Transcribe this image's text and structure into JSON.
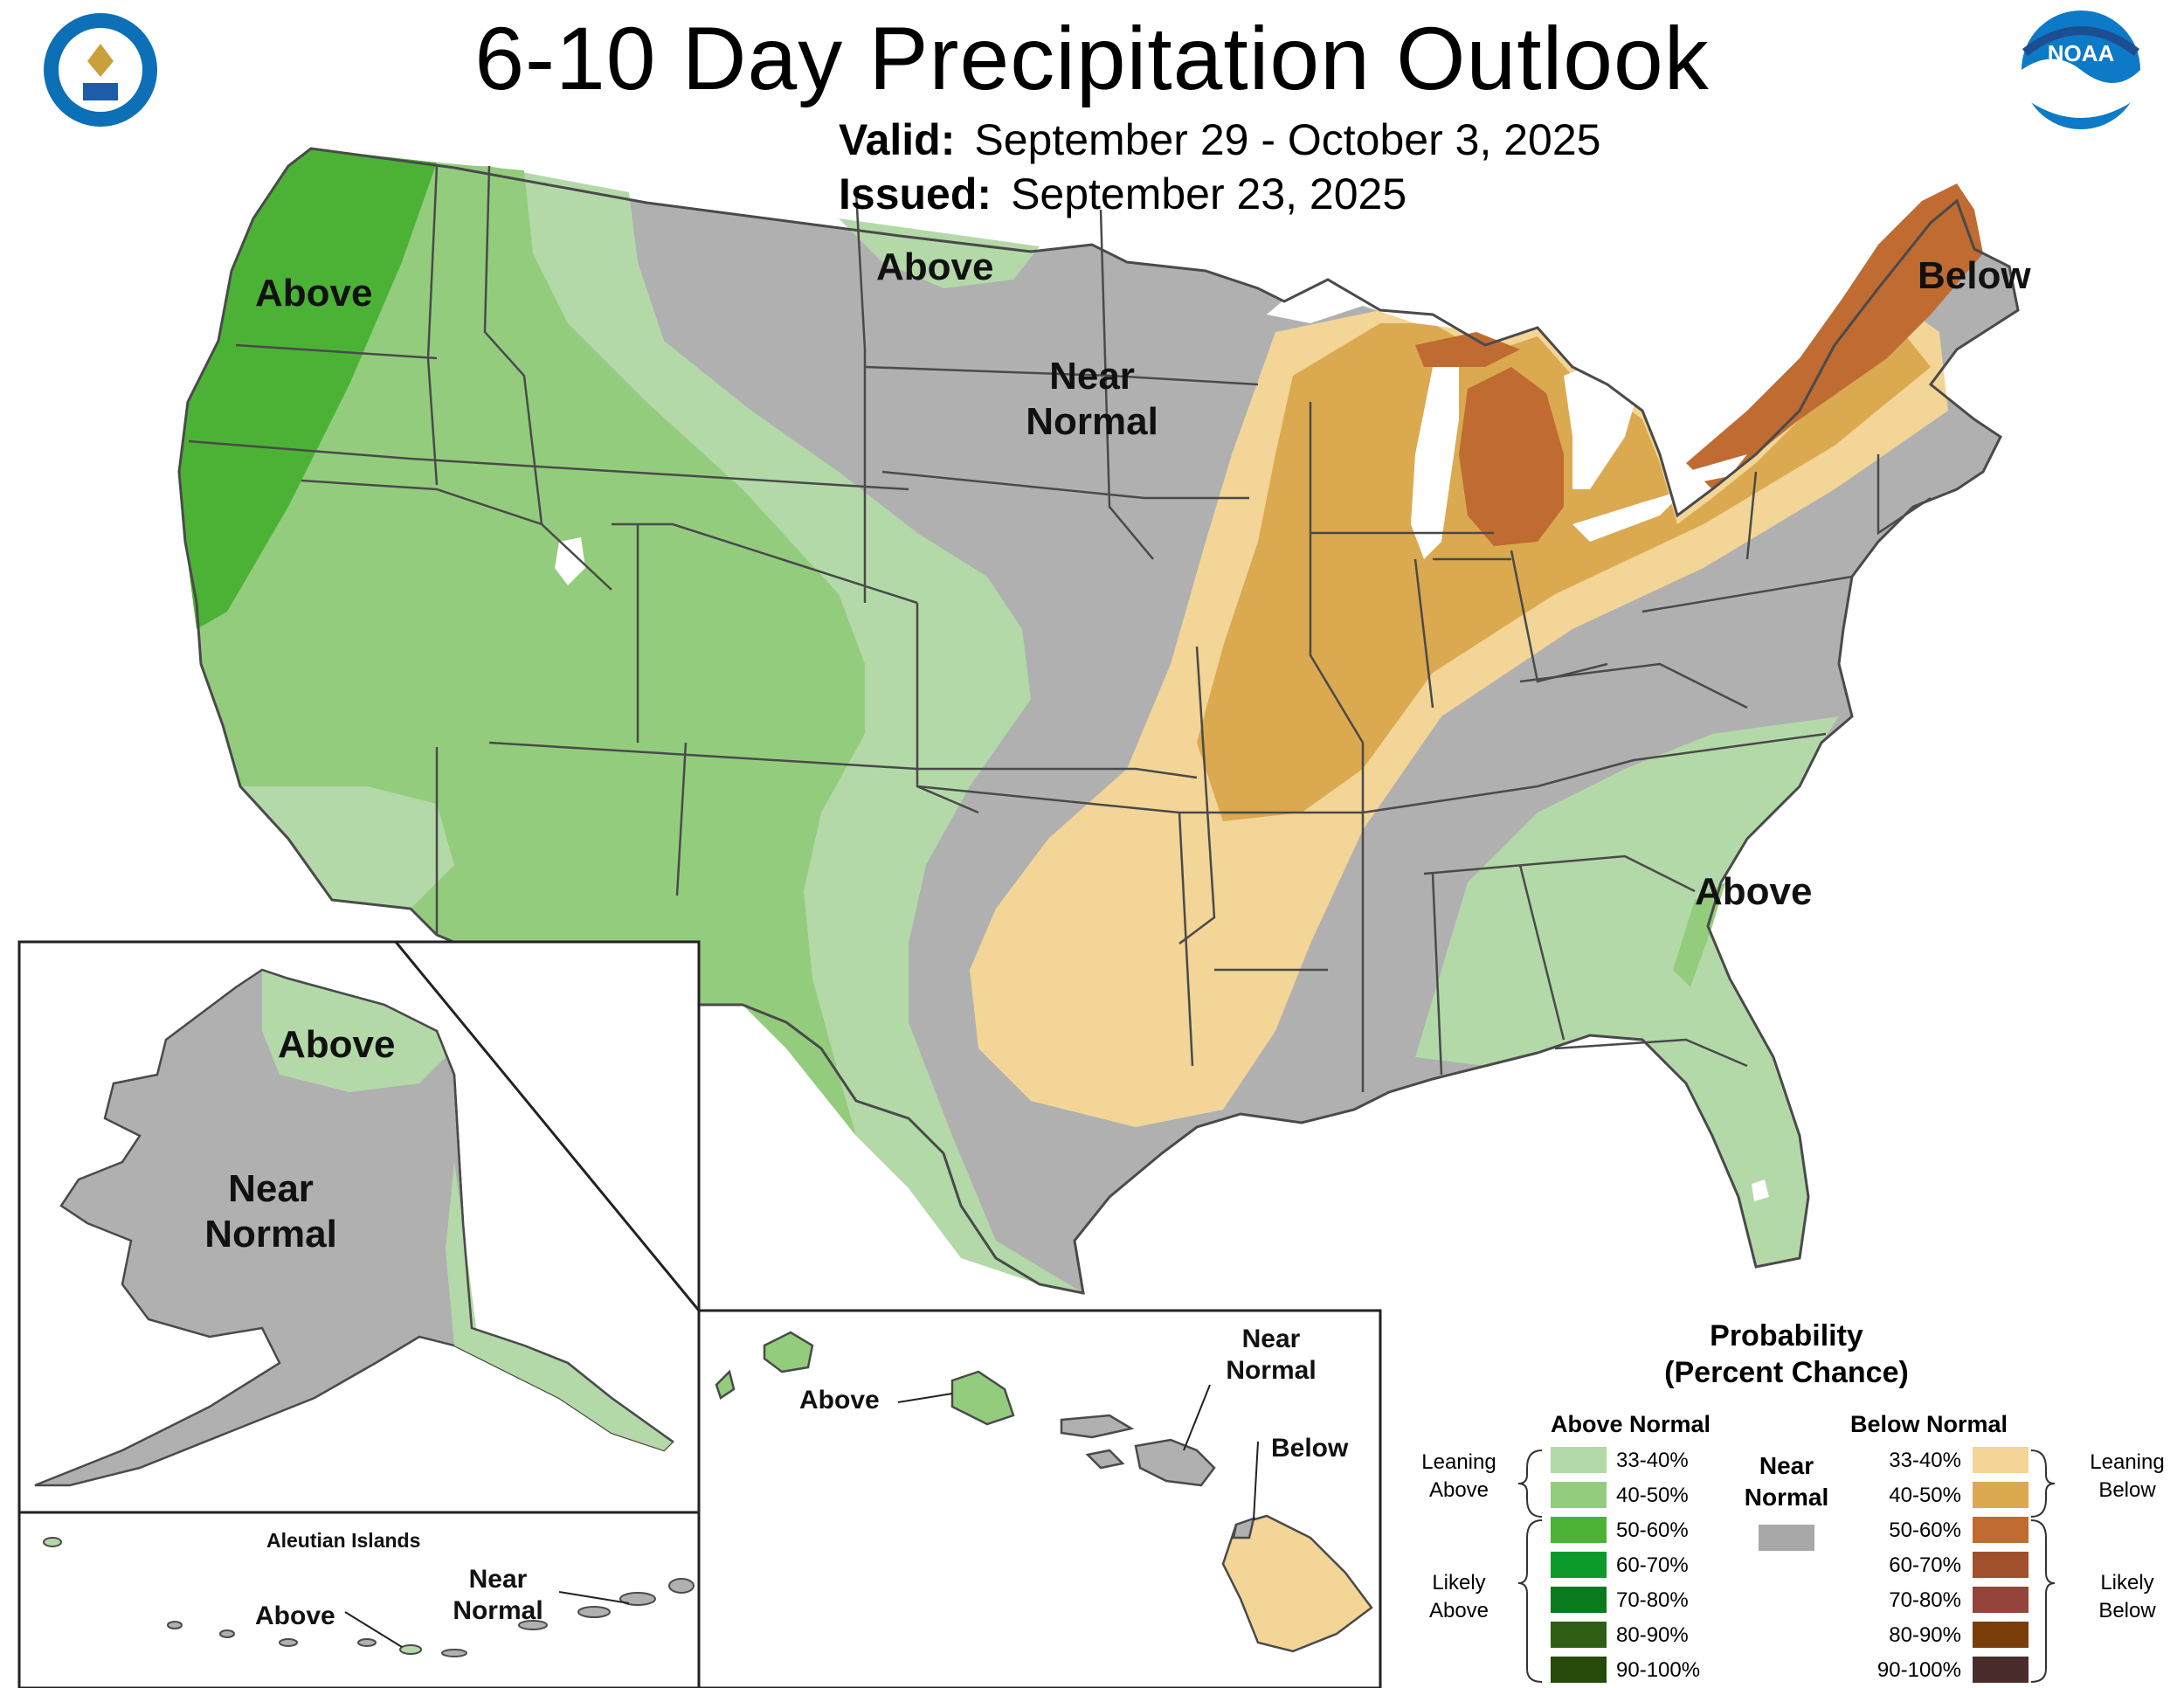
{
  "title": "6-10 Day Precipitation Outlook",
  "valid_label": "Valid:",
  "valid_value": "September 29 - October 3, 2025",
  "issued_label": "Issued:",
  "issued_value": "September 23, 2025",
  "map_labels": {
    "west_above": "Above",
    "north_above": "Above",
    "central_near_1": "Near",
    "central_near_2": "Normal",
    "northeast_below": "Below",
    "southeast_above": "Above",
    "alaska_above": "Above",
    "alaska_near_1": "Near",
    "alaska_near_2": "Normal",
    "aleutian_title": "Aleutian Islands",
    "aleutian_above": "Above",
    "aleutian_near_1": "Near",
    "aleutian_near_2": "Normal",
    "hawaii_above": "Above",
    "hawaii_near_1": "Near",
    "hawaii_near_2": "Normal",
    "hawaii_below": "Below"
  },
  "legend": {
    "title_1": "Probability",
    "title_2": "(Percent Chance)",
    "above_header": "Above Normal",
    "below_header": "Below Normal",
    "near_1": "Near",
    "near_2": "Normal",
    "leaning_above_1": "Leaning",
    "leaning_above_2": "Above",
    "likely_above_1": "Likely",
    "likely_above_2": "Above",
    "leaning_below_1": "Leaning",
    "leaning_below_2": "Below",
    "likely_below_1": "Likely",
    "likely_below_2": "Below",
    "above_rows": [
      {
        "label": "33-40%",
        "color": "#b3d9a8"
      },
      {
        "label": "40-50%",
        "color": "#94cc7e"
      },
      {
        "label": "50-60%",
        "color": "#4cb236"
      },
      {
        "label": "60-70%",
        "color": "#0d9a2c"
      },
      {
        "label": "70-80%",
        "color": "#0a7a1e"
      },
      {
        "label": "80-90%",
        "color": "#2e5e14"
      },
      {
        "label": "90-100%",
        "color": "#254a0a"
      }
    ],
    "below_rows": [
      {
        "label": "33-40%",
        "color": "#f2d597"
      },
      {
        "label": "40-50%",
        "color": "#dba94f"
      },
      {
        "label": "50-60%",
        "color": "#bf6b32"
      },
      {
        "label": "60-70%",
        "color": "#a0502c"
      },
      {
        "label": "70-80%",
        "color": "#94443a"
      },
      {
        "label": "80-90%",
        "color": "#7a3e0a"
      },
      {
        "label": "90-100%",
        "color": "#4a2c2c"
      }
    ],
    "near_color": "#a8a8a8"
  },
  "colors": {
    "near_normal": "#b0b0b0",
    "state_lines": "#4a4a4a"
  },
  "logos": {
    "left": "department-of-commerce-seal-icon",
    "right": "noaa-logo-icon",
    "noaa_text": "NOAA"
  }
}
